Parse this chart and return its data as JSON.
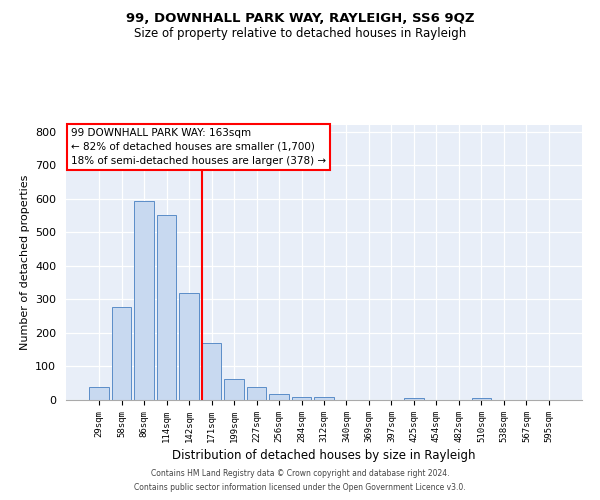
{
  "title": "99, DOWNHALL PARK WAY, RAYLEIGH, SS6 9QZ",
  "subtitle": "Size of property relative to detached houses in Rayleigh",
  "xlabel": "Distribution of detached houses by size in Rayleigh",
  "ylabel": "Number of detached properties",
  "bar_color": "#c8d9f0",
  "bar_edge_color": "#5b8dc8",
  "background_color": "#e8eef8",
  "categories": [
    "29sqm",
    "58sqm",
    "86sqm",
    "114sqm",
    "142sqm",
    "171sqm",
    "199sqm",
    "227sqm",
    "256sqm",
    "284sqm",
    "312sqm",
    "340sqm",
    "369sqm",
    "397sqm",
    "425sqm",
    "454sqm",
    "482sqm",
    "510sqm",
    "538sqm",
    "567sqm",
    "595sqm"
  ],
  "values": [
    38,
    278,
    592,
    553,
    320,
    170,
    63,
    38,
    18,
    8,
    8,
    0,
    0,
    0,
    5,
    0,
    0,
    5,
    0,
    0,
    0
  ],
  "ylim": [
    0,
    820
  ],
  "yticks": [
    0,
    100,
    200,
    300,
    400,
    500,
    600,
    700,
    800
  ],
  "vline_x": 4.57,
  "annotation_title": "99 DOWNHALL PARK WAY: 163sqm",
  "annotation_line1": "← 82% of detached houses are smaller (1,700)",
  "annotation_line2": "18% of semi-detached houses are larger (378) →",
  "footer1": "Contains HM Land Registry data © Crown copyright and database right 2024.",
  "footer2": "Contains public sector information licensed under the Open Government Licence v3.0."
}
